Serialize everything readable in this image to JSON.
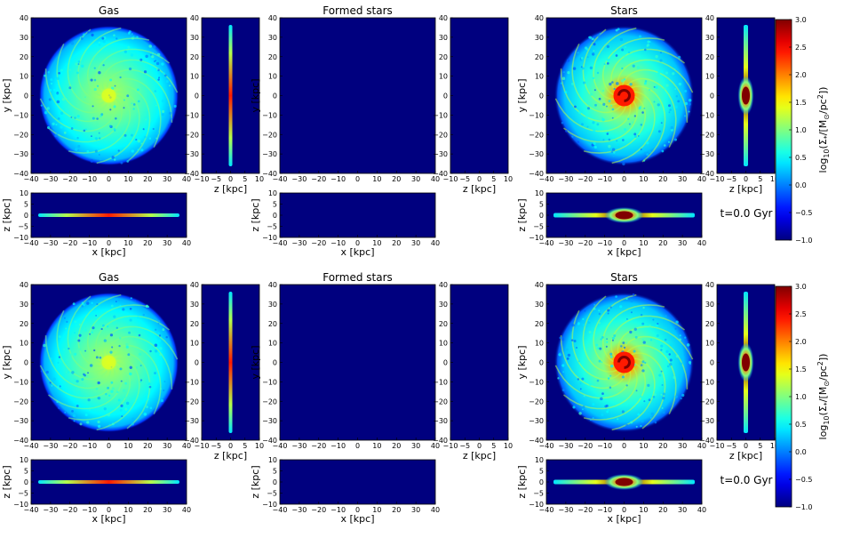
{
  "figure": {
    "rows": [
      {
        "time_label": "t=0.0 Gyr",
        "colorbar": {
          "label": "log10(Σ*/[M⊙/pc²])",
          "label_parts": {
            "base": "log",
            "sub": "10",
            "open": "(Σ",
            "star": "*",
            "mid": "/[M",
            "sun": "⊙",
            "end": "/pc",
            "sup": "2",
            "close": "])"
          },
          "ticks": [
            "3.0",
            "2.5",
            "2.0",
            "1.5",
            "1.0",
            "0.5",
            "0.0",
            "−0.5",
            "−1.0"
          ]
        },
        "panels": [
          {
            "title": "Gas"
          },
          {
            "title": "Formed stars"
          },
          {
            "title": "Stars"
          }
        ]
      },
      {
        "time_label": "t=0.0 Gyr",
        "colorbar": {
          "label": "log10(Σ*/[M⊙/pc²])",
          "label_parts": {
            "base": "log",
            "sub": "10",
            "open": "(Σ",
            "star": "*",
            "mid": "/[M",
            "sun": "⊙",
            "end": "/pc",
            "sup": "2",
            "close": "])"
          },
          "ticks": [
            "3.0",
            "2.5",
            "2.0",
            "1.5",
            "1.0",
            "0.5",
            "0.0",
            "−0.5",
            "−1.0"
          ]
        },
        "panels": [
          {
            "title": "Gas"
          },
          {
            "title": "Formed stars"
          },
          {
            "title": "Stars"
          }
        ]
      }
    ],
    "axes": {
      "face_on": {
        "x_ticks": [
          "−40",
          "−30",
          "−20",
          "−10",
          "0",
          "10",
          "20",
          "30",
          "40"
        ],
        "y_ticks": [
          "40",
          "30",
          "20",
          "10",
          "0",
          "−10",
          "−20",
          "−30",
          "−40"
        ],
        "ylabel": "y [kpc]"
      },
      "edge_on_side": {
        "x_ticks": [
          "−10",
          "−5",
          "0",
          "5",
          "10"
        ],
        "y_ticks": [
          "40",
          "30",
          "20",
          "10",
          "0",
          "−10",
          "−20",
          "−30",
          "−40"
        ],
        "xlabel": "z [kpc]"
      },
      "edge_on_bottom": {
        "x_ticks": [
          "−40",
          "−30",
          "−20",
          "−10",
          "0",
          "10",
          "20",
          "30",
          "40"
        ],
        "y_ticks": [
          "10",
          "5",
          "0",
          "−5",
          "−10"
        ],
        "xlabel": "x [kpc]",
        "ylabel": "z [kpc]"
      }
    }
  },
  "chart_data": {
    "type": "heatmap",
    "title": "",
    "colormap": "jet",
    "colors": {
      "background": "#00007f",
      "low": "#00007f",
      "high": "#7f0000"
    },
    "color_range": [
      -1.0,
      3.0
    ],
    "x_range_kpc": [
      -40,
      40
    ],
    "y_range_kpc": [
      -40,
      40
    ],
    "z_range_kpc": [
      -10,
      10
    ],
    "panels": [
      {
        "name": "Gas",
        "disk_radius_kpc": 36,
        "peak_log_sigma": 1.5,
        "spiral": true,
        "bulge": false
      },
      {
        "name": "Formed stars",
        "empty": true
      },
      {
        "name": "Stars",
        "disk_radius_kpc": 36,
        "peak_log_sigma": 3.0,
        "spiral": true,
        "bulge": true
      }
    ]
  }
}
